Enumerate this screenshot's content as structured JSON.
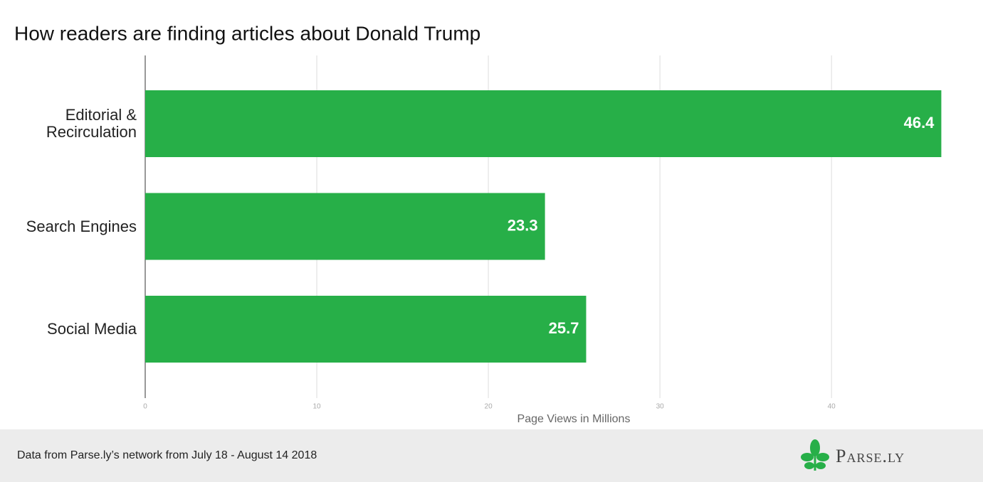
{
  "chart_data": {
    "type": "bar",
    "orientation": "horizontal",
    "title": "How readers are finding articles about Donald Trump",
    "categories": [
      "Editorial &\nRecirculation",
      "Search Engines",
      "Social Media"
    ],
    "values": [
      46.4,
      23.3,
      25.7
    ],
    "color": "#27af48",
    "xlabel": "Page Views in Millions",
    "xlim": [
      0,
      48
    ],
    "xticks": [
      0,
      10,
      20,
      30,
      40
    ],
    "grid": true,
    "footer": "Data from Parse.ly’s network from July 18 - August 14 2018",
    "logo": "Parse.ly"
  }
}
